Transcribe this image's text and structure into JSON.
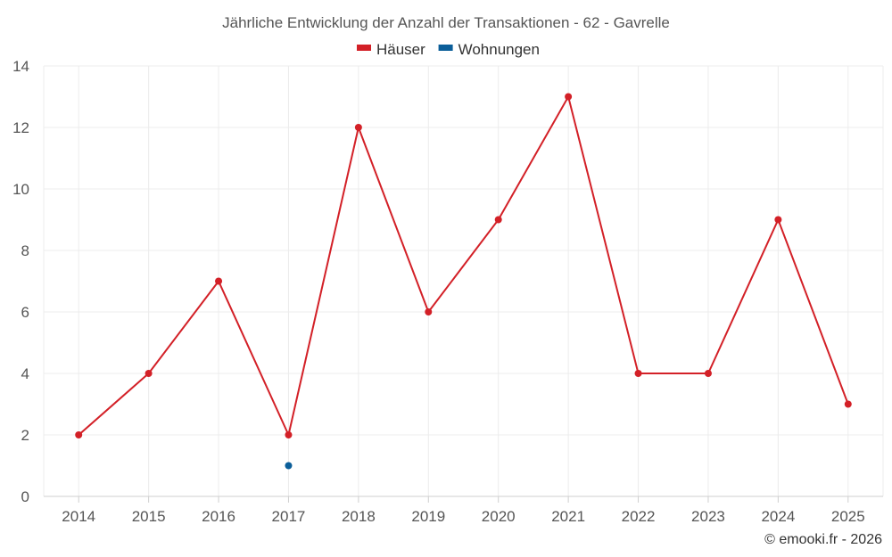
{
  "chart_data": {
    "type": "line",
    "title": "Jährliche Entwicklung der Anzahl der Transaktionen - 62 - Gavrelle",
    "x": [
      "2014",
      "2015",
      "2016",
      "2017",
      "2018",
      "2019",
      "2020",
      "2021",
      "2022",
      "2023",
      "2024",
      "2025"
    ],
    "series": [
      {
        "name": "Häuser",
        "color": "#d32027",
        "values": [
          2,
          4,
          7,
          2,
          12,
          6,
          9,
          13,
          4,
          4,
          9,
          3
        ]
      },
      {
        "name": "Wohnungen",
        "color": "#0b5e99",
        "values": [
          null,
          null,
          null,
          1,
          null,
          null,
          null,
          null,
          null,
          null,
          null,
          null
        ]
      }
    ],
    "ylim": [
      0,
      14
    ],
    "yticks": [
      0,
      2,
      4,
      6,
      8,
      10,
      12,
      14
    ],
    "grid": true,
    "legend_position": "top-center"
  },
  "credit": "© emooki.fr - 2026"
}
